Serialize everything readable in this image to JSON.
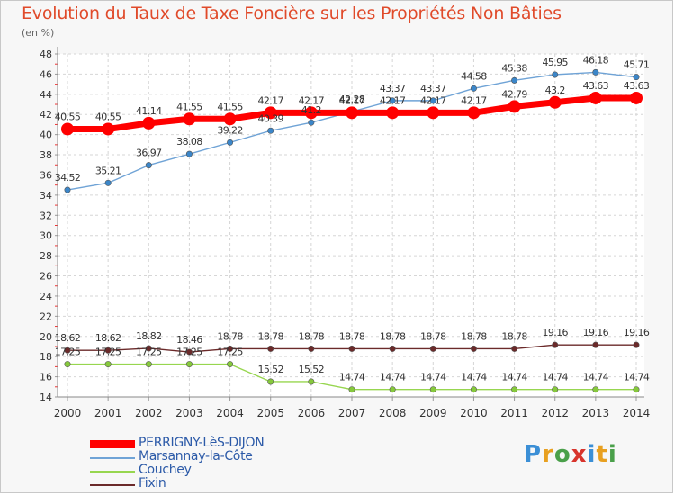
{
  "title": "Evolution du Taux de Taxe Foncière sur les Propriétés Non Bâties",
  "subtitle": "(en %)",
  "logo": {
    "text": "Proxiti",
    "colors": [
      "#3b8fd6",
      "#e8a020",
      "#4aa04a",
      "#d8342c",
      "#3b8fd6",
      "#e8a020",
      "#4aa04a"
    ]
  },
  "legend": [
    {
      "label": "PERRIGNY-LèS-DIJON",
      "color": "#ff0000"
    },
    {
      "label": "Marsannay-la-Côte",
      "color": "#6fa3d6"
    },
    {
      "label": "Couchey",
      "color": "#97d64f"
    },
    {
      "label": "Fixin",
      "color": "#6b2a2a"
    }
  ],
  "chart_data": {
    "type": "line",
    "categories": [
      "2000",
      "2001",
      "2002",
      "2003",
      "2004",
      "2005",
      "2006",
      "2007",
      "2008",
      "2009",
      "2010",
      "2011",
      "2012",
      "2013",
      "2014"
    ],
    "ylim": [
      14,
      48
    ],
    "yticks": [
      14,
      16,
      18,
      20,
      22,
      24,
      26,
      28,
      30,
      32,
      34,
      36,
      38,
      40,
      42,
      44,
      46,
      48
    ],
    "grid": true,
    "series": [
      {
        "name": "PERRIGNY-LèS-DIJON",
        "color": "#ff0000",
        "marker": "#ff0000",
        "values": [
          40.55,
          40.55,
          41.14,
          41.55,
          41.55,
          42.17,
          42.17,
          42.17,
          42.17,
          42.17,
          42.17,
          42.79,
          43.2,
          43.63,
          43.63
        ]
      },
      {
        "name": "Marsannay-la-Côte",
        "color": "#6fa3d6",
        "marker": "#3b86c9",
        "values": [
          34.52,
          35.21,
          36.97,
          38.08,
          39.22,
          40.39,
          41.2,
          42.28,
          43.37,
          43.37,
          44.58,
          45.38,
          45.95,
          46.18,
          45.71
        ]
      },
      {
        "name": "Couchey",
        "color": "#97d64f",
        "marker": "#86c93c",
        "values": [
          17.25,
          17.25,
          17.25,
          17.25,
          17.25,
          15.52,
          15.52,
          14.74,
          14.74,
          14.74,
          14.74,
          14.74,
          14.74,
          14.74,
          14.74
        ]
      },
      {
        "name": "Fixin",
        "color": "#6b2a2a",
        "marker": "#6b2a2a",
        "values": [
          18.62,
          18.62,
          18.82,
          18.46,
          18.78,
          18.78,
          18.78,
          18.78,
          18.78,
          18.78,
          18.78,
          18.78,
          19.16,
          19.16,
          19.16
        ]
      }
    ],
    "labels": [
      {
        "series": 0,
        "values": [
          "40.55",
          "40.55",
          "41.14",
          "41.55",
          "41.55",
          "42.17",
          "42.17",
          "42.17",
          "42.17",
          "42.17",
          "42.17",
          "42.79",
          "43.2",
          "43.63",
          "43.63"
        ]
      },
      {
        "series": 1,
        "values": [
          "34.52",
          "35.21",
          "36.97",
          "38.08",
          "39.22",
          "40.39",
          "41.2",
          "42.28",
          "43.37",
          "43.37",
          "44.58",
          "45.38",
          "45.95",
          "46.18",
          "45.71"
        ]
      },
      {
        "series": 2,
        "values": [
          "17.25",
          "17.25",
          "17.25",
          "17.25",
          "17.25",
          "15.52",
          "15.52",
          "14.74",
          "14.74",
          "14.74",
          "14.74",
          "14.74",
          "14.74",
          "14.74",
          "14.74"
        ]
      },
      {
        "series": 3,
        "values": [
          "18.62",
          "18.62",
          "18.82",
          "18.46",
          "18.78",
          "18.78",
          "18.78",
          "18.78",
          "18.78",
          "18.78",
          "18.78",
          "18.78",
          "19.16",
          "19.16",
          "19.16"
        ]
      }
    ]
  }
}
